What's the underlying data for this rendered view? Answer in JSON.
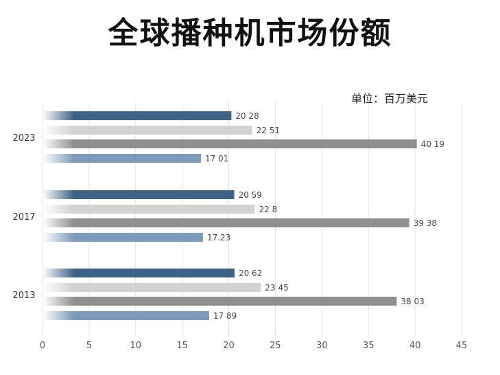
{
  "chart_data": {
    "type": "bar",
    "orientation": "horizontal",
    "title": "全球播种机市场份额",
    "unit": "单位：百万美元",
    "categories": [
      "2023",
      "2017",
      "2013"
    ],
    "series": [
      {
        "values": [
          20.28,
          20.59,
          20.62
        ],
        "labels": [
          "20 28",
          "20 59",
          "20 62"
        ],
        "color": "#3e6286"
      },
      {
        "values": [
          22.51,
          22.8,
          23.45
        ],
        "labels": [
          "22 51",
          "22 8",
          "23 45"
        ],
        "color": "#d2d2d2"
      },
      {
        "values": [
          40.19,
          39.38,
          38.03
        ],
        "labels": [
          "40 19",
          "39 38",
          "38 03"
        ],
        "color": "#8f8f8f"
      },
      {
        "values": [
          17.01,
          17.23,
          17.89
        ],
        "labels": [
          "17 01",
          "17.23",
          "17 89"
        ],
        "color": "#7d9ab8"
      }
    ],
    "xlim": [
      0,
      45
    ],
    "xticks": [
      "0",
      "5",
      "10",
      "15",
      "20",
      "25",
      "30",
      "35",
      "40",
      "45"
    ],
    "grid": true,
    "legend": "none"
  }
}
